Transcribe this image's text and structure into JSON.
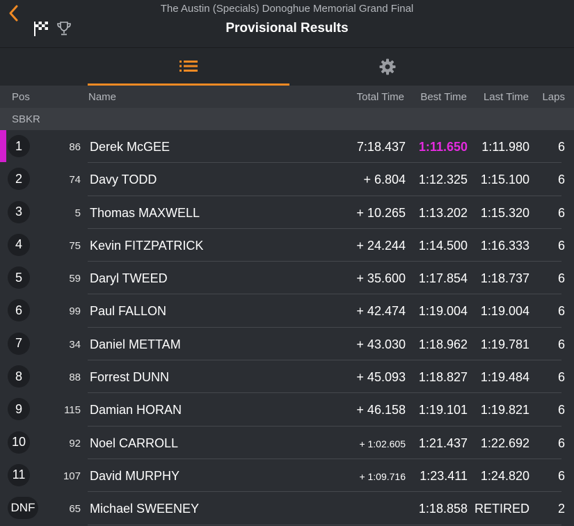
{
  "header": {
    "subtitle": "The Austin (Specials) Donoghue Memorial Grand Final",
    "title": "Provisional Results",
    "icons": [
      "back-chevron-icon",
      "checkered-flag-icon",
      "trophy-icon"
    ]
  },
  "tabs": [
    {
      "icon": "list-icon",
      "active": true
    },
    {
      "icon": "gear-icon",
      "active": false
    }
  ],
  "columns": {
    "pos": "Pos",
    "name": "Name",
    "total": "Total Time",
    "best": "Best Time",
    "last": "Last Time",
    "laps": "Laps"
  },
  "group": "SBKR",
  "colors": {
    "accent": "#f08a24",
    "fastest": "#e52ae0"
  },
  "rows": [
    {
      "pos": "1",
      "num": "86",
      "name": "Derek McGEE",
      "total": "7:18.437",
      "best": "1:11.650",
      "last": "1:11.980",
      "laps": "6"
    },
    {
      "pos": "2",
      "num": "74",
      "name": "Davy TODD",
      "total": "+ 6.804",
      "best": "1:12.325",
      "last": "1:15.100",
      "laps": "6"
    },
    {
      "pos": "3",
      "num": "5",
      "name": "Thomas MAXWELL",
      "total": "+ 10.265",
      "best": "1:13.202",
      "last": "1:15.320",
      "laps": "6"
    },
    {
      "pos": "4",
      "num": "75",
      "name": "Kevin FITZPATRICK",
      "total": "+ 24.244",
      "best": "1:14.500",
      "last": "1:16.333",
      "laps": "6"
    },
    {
      "pos": "5",
      "num": "59",
      "name": "Daryl TWEED",
      "total": "+ 35.600",
      "best": "1:17.854",
      "last": "1:18.737",
      "laps": "6"
    },
    {
      "pos": "6",
      "num": "99",
      "name": "Paul FALLON",
      "total": "+ 42.474",
      "best": "1:19.004",
      "last": "1:19.004",
      "laps": "6"
    },
    {
      "pos": "7",
      "num": "34",
      "name": "Daniel METTAM",
      "total": "+ 43.030",
      "best": "1:18.962",
      "last": "1:19.781",
      "laps": "6"
    },
    {
      "pos": "8",
      "num": "88",
      "name": "Forrest DUNN",
      "total": "+ 45.093",
      "best": "1:18.827",
      "last": "1:19.484",
      "laps": "6"
    },
    {
      "pos": "9",
      "num": "115",
      "name": "Damian HORAN",
      "total": "+ 46.158",
      "best": "1:19.101",
      "last": "1:19.821",
      "laps": "6"
    },
    {
      "pos": "10",
      "num": "92",
      "name": "Noel CARROLL",
      "total": "+ 1:02.605",
      "best": "1:21.437",
      "last": "1:22.692",
      "laps": "6"
    },
    {
      "pos": "11",
      "num": "107",
      "name": "David MURPHY",
      "total": "+ 1:09.716",
      "best": "1:23.411",
      "last": "1:24.820",
      "laps": "6"
    },
    {
      "pos": "DNF",
      "num": "65",
      "name": "Michael SWEENEY",
      "total": "",
      "best": "1:18.858",
      "last": "RETIRED",
      "laps": "2"
    }
  ]
}
